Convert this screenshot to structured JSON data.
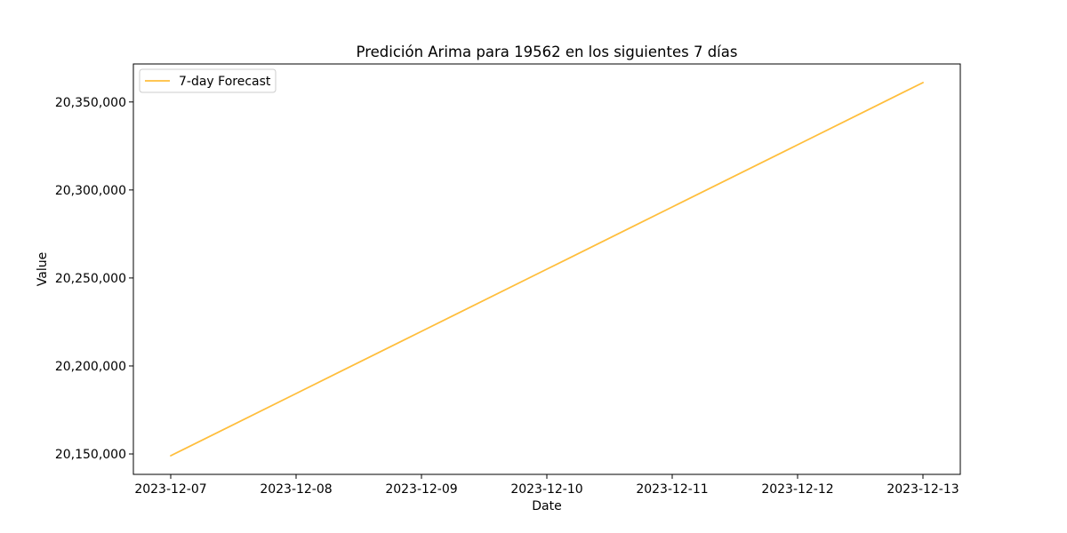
{
  "chart_data": {
    "type": "line",
    "title": "Predición Arima para 19562 en los siguientes 7 días",
    "xlabel": "Date",
    "ylabel": "Value",
    "x": [
      "2023-12-07",
      "2023-12-08",
      "2023-12-09",
      "2023-12-10",
      "2023-12-11",
      "2023-12-12",
      "2023-12-13"
    ],
    "series": [
      {
        "name": "7-day Forecast",
        "color": "#ffbe3c",
        "values": [
          20149000,
          20184333,
          20219667,
          20255000,
          20290333,
          20325667,
          20361000
        ]
      }
    ],
    "yticks": [
      20150000,
      20200000,
      20250000,
      20300000,
      20350000
    ],
    "ytick_labels": [
      "20,150,000",
      "20,200,000",
      "20,250,000",
      "20,300,000",
      "20,350,000"
    ],
    "ylim": [
      20138400,
      20371600
    ],
    "grid": false,
    "legend": "top-left"
  }
}
